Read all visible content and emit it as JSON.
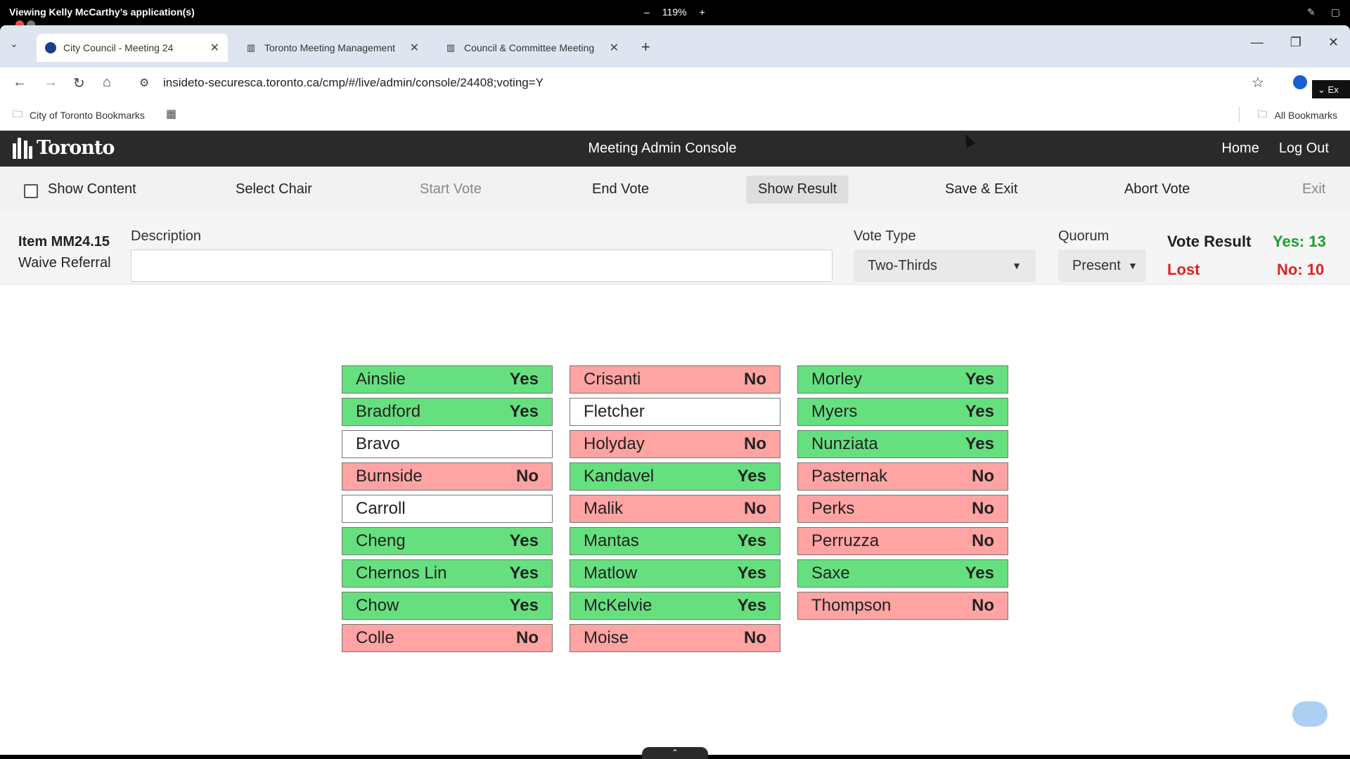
{
  "session": {
    "title": "Viewing Kelly McCarthy’s application(s)",
    "zoom": "119%",
    "zoom_minus": "–",
    "zoom_plus": "+"
  },
  "browser": {
    "tabs": [
      {
        "title": "City Council - Meeting 24",
        "active": true
      },
      {
        "title": "Toronto Meeting Management",
        "active": false
      },
      {
        "title": "Council & Committee Meeting",
        "active": false
      }
    ],
    "url": "insideto-securesca.toronto.ca/cmp/#/live/admin/console/24408;voting=Y",
    "bookmarks_folder": "City of Toronto Bookmarks",
    "all_bookmarks": "All Bookmarks",
    "ext_label": "Ex"
  },
  "app": {
    "logo_text": "Toronto",
    "title": "Meeting Admin Console",
    "nav": {
      "home": "Home",
      "logout": "Log Out"
    }
  },
  "commands": {
    "show_content": "Show Content",
    "select_chair": "Select Chair",
    "start_vote": "Start Vote",
    "end_vote": "End Vote",
    "show_result": "Show Result",
    "save_exit": "Save & Exit",
    "abort_vote": "Abort Vote",
    "exit": "Exit"
  },
  "item": {
    "id": "Item MM24.15",
    "subtitle": "Waive Referral",
    "description_label": "Description",
    "description_value": "",
    "vote_type_label": "Vote Type",
    "vote_type_value": "Two-Thirds",
    "quorum_label": "Quorum",
    "quorum_value": "Present"
  },
  "result": {
    "title": "Vote Result",
    "status": "Lost",
    "yes": "Yes: 13",
    "no": "No: 10"
  },
  "colors": {
    "yes": "#66e07f",
    "no": "#ffa3a3",
    "lost": "#e02020",
    "yes_count": "#1e9e30"
  },
  "members": [
    [
      {
        "name": "Ainslie",
        "vote": "Yes"
      },
      {
        "name": "Bradford",
        "vote": "Yes"
      },
      {
        "name": "Bravo",
        "vote": ""
      },
      {
        "name": "Burnside",
        "vote": "No"
      },
      {
        "name": "Carroll",
        "vote": ""
      },
      {
        "name": "Cheng",
        "vote": "Yes"
      },
      {
        "name": "Chernos Lin",
        "vote": "Yes"
      },
      {
        "name": "Chow",
        "vote": "Yes"
      },
      {
        "name": "Colle",
        "vote": "No"
      }
    ],
    [
      {
        "name": "Crisanti",
        "vote": "No"
      },
      {
        "name": "Fletcher",
        "vote": ""
      },
      {
        "name": "Holyday",
        "vote": "No"
      },
      {
        "name": "Kandavel",
        "vote": "Yes"
      },
      {
        "name": "Malik",
        "vote": "No"
      },
      {
        "name": "Mantas",
        "vote": "Yes"
      },
      {
        "name": "Matlow",
        "vote": "Yes"
      },
      {
        "name": "McKelvie",
        "vote": "Yes"
      },
      {
        "name": "Moise",
        "vote": "No"
      }
    ],
    [
      {
        "name": "Morley",
        "vote": "Yes"
      },
      {
        "name": "Myers",
        "vote": "Yes"
      },
      {
        "name": "Nunziata",
        "vote": "Yes"
      },
      {
        "name": "Pasternak",
        "vote": "No"
      },
      {
        "name": "Perks",
        "vote": "No"
      },
      {
        "name": "Perruzza",
        "vote": "No"
      },
      {
        "name": "Saxe",
        "vote": "Yes"
      },
      {
        "name": "Thompson",
        "vote": "No"
      }
    ]
  ]
}
